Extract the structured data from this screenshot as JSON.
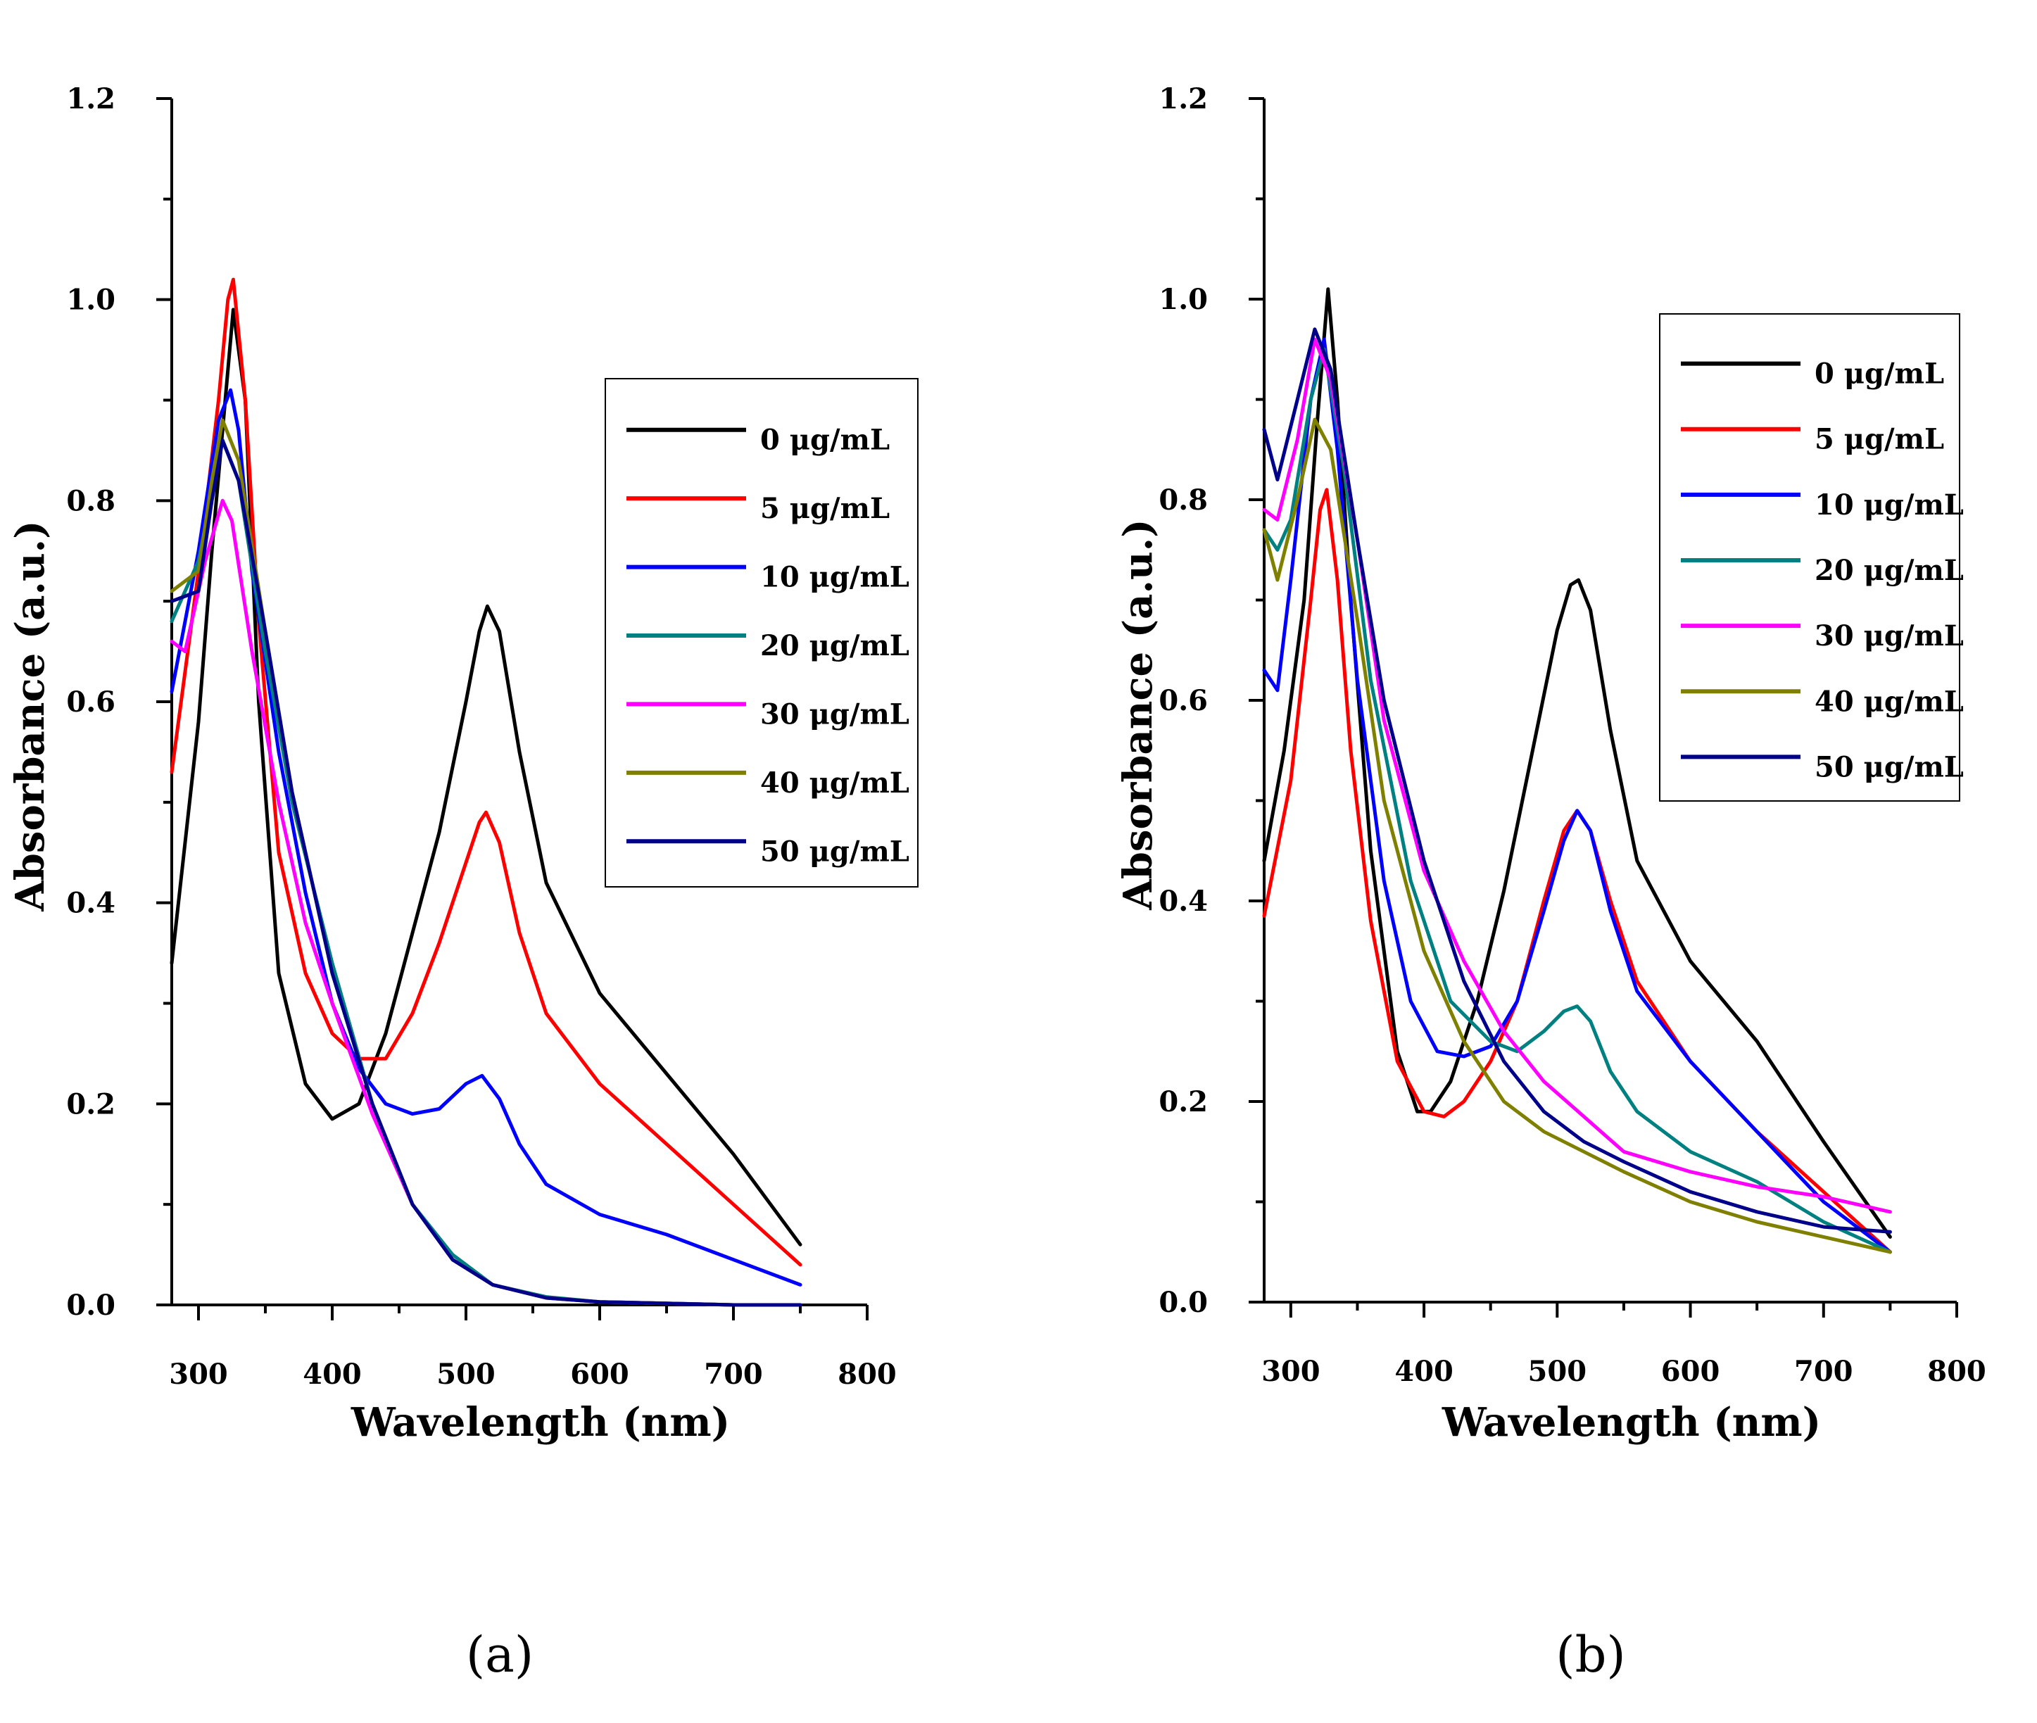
{
  "chart_data": [
    {
      "type": "line",
      "panel_label": "(a)",
      "xlabel": "Wavelength (nm)",
      "ylabel": "Absorbance (a.u.)",
      "xlim": [
        280,
        800
      ],
      "ylim": [
        0,
        1.2
      ],
      "xticks": [
        300,
        400,
        500,
        600,
        700,
        800
      ],
      "yticks": [
        0.0,
        0.2,
        0.4,
        0.6,
        0.8,
        1.0,
        1.2
      ],
      "xtick_labels": [
        "300",
        "400",
        "500",
        "600",
        "700",
        "800"
      ],
      "ytick_labels": [
        "0.0",
        "0.2",
        "0.4",
        "0.6",
        "0.8",
        "1.0",
        "1.2"
      ],
      "legend_position": "right",
      "series": [
        {
          "name": "0 μg/mL",
          "color": "#000000",
          "x": [
            280,
            300,
            310,
            320,
            326,
            335,
            345,
            360,
            380,
            400,
            420,
            440,
            460,
            480,
            500,
            510,
            516,
            525,
            540,
            560,
            600,
            650,
            700,
            750
          ],
          "y": [
            0.34,
            0.58,
            0.75,
            0.9,
            0.99,
            0.9,
            0.6,
            0.33,
            0.22,
            0.185,
            0.2,
            0.27,
            0.37,
            0.47,
            0.6,
            0.67,
            0.695,
            0.67,
            0.55,
            0.42,
            0.31,
            0.23,
            0.15,
            0.06
          ]
        },
        {
          "name": "5 μg/mL",
          "color": "#ff0000",
          "x": [
            280,
            300,
            315,
            322,
            326,
            335,
            345,
            360,
            380,
            400,
            420,
            440,
            460,
            480,
            500,
            510,
            515,
            525,
            540,
            560,
            600,
            650,
            700,
            750
          ],
          "y": [
            0.53,
            0.73,
            0.9,
            1.0,
            1.02,
            0.9,
            0.68,
            0.45,
            0.33,
            0.27,
            0.245,
            0.245,
            0.29,
            0.36,
            0.44,
            0.48,
            0.49,
            0.46,
            0.37,
            0.29,
            0.22,
            0.16,
            0.1,
            0.04
          ]
        },
        {
          "name": "10 μg/mL",
          "color": "#0000ff",
          "x": [
            280,
            300,
            315,
            324,
            330,
            340,
            360,
            380,
            400,
            420,
            440,
            460,
            480,
            500,
            512,
            525,
            540,
            560,
            600,
            650,
            700,
            750
          ],
          "y": [
            0.61,
            0.75,
            0.88,
            0.91,
            0.87,
            0.73,
            0.55,
            0.41,
            0.3,
            0.235,
            0.2,
            0.19,
            0.195,
            0.22,
            0.228,
            0.205,
            0.16,
            0.12,
            0.09,
            0.07,
            0.045,
            0.02
          ]
        },
        {
          "name": "20 μg/mL",
          "color": "#008080",
          "x": [
            280,
            300,
            318,
            330,
            350,
            370,
            400,
            430,
            460,
            490,
            520,
            560,
            600,
            700,
            750
          ],
          "y": [
            0.68,
            0.74,
            0.86,
            0.82,
            0.65,
            0.5,
            0.34,
            0.2,
            0.1,
            0.05,
            0.02,
            0.008,
            0.003,
            0.0,
            0.0
          ]
        },
        {
          "name": "30 μg/mL",
          "color": "#ff00ff",
          "x": [
            280,
            290,
            305,
            318,
            325,
            340,
            360,
            380,
            400,
            430,
            460,
            490,
            520,
            560,
            600,
            700,
            750
          ],
          "y": [
            0.66,
            0.65,
            0.74,
            0.8,
            0.78,
            0.65,
            0.5,
            0.38,
            0.3,
            0.19,
            0.1,
            0.045,
            0.02,
            0.007,
            0.003,
            0.0,
            0.0
          ]
        },
        {
          "name": "40 μg/mL",
          "color": "#808000",
          "x": [
            280,
            300,
            310,
            318,
            330,
            350,
            370,
            400,
            430,
            460,
            490,
            520,
            560,
            600,
            700,
            750
          ],
          "y": [
            0.71,
            0.73,
            0.82,
            0.88,
            0.84,
            0.67,
            0.51,
            0.33,
            0.2,
            0.1,
            0.045,
            0.02,
            0.007,
            0.003,
            0.0,
            0.0
          ]
        },
        {
          "name": "50 μg/mL",
          "color": "#00008b",
          "x": [
            280,
            300,
            310,
            318,
            330,
            350,
            370,
            400,
            430,
            460,
            490,
            520,
            560,
            600,
            700,
            750
          ],
          "y": [
            0.7,
            0.71,
            0.8,
            0.86,
            0.82,
            0.67,
            0.51,
            0.33,
            0.2,
            0.1,
            0.045,
            0.02,
            0.007,
            0.003,
            0.0,
            0.0
          ]
        }
      ]
    },
    {
      "type": "line",
      "panel_label": "(b)",
      "xlabel": "Wavelength (nm)",
      "ylabel": "Absorbance (a.u.)",
      "xlim": [
        280,
        800
      ],
      "ylim": [
        0,
        1.2
      ],
      "xticks": [
        300,
        400,
        500,
        600,
        700,
        800
      ],
      "yticks": [
        0.0,
        0.2,
        0.4,
        0.6,
        0.8,
        1.0,
        1.2
      ],
      "xtick_labels": [
        "300",
        "400",
        "500",
        "600",
        "700",
        "800"
      ],
      "ytick_labels": [
        "0.0",
        "0.2",
        "0.4",
        "0.6",
        "0.8",
        "1.0",
        "1.2"
      ],
      "legend_position": "top-right",
      "series": [
        {
          "name": "0 μg/mL",
          "color": "#000000",
          "x": [
            280,
            295,
            310,
            320,
            328,
            335,
            345,
            360,
            380,
            395,
            405,
            420,
            440,
            460,
            480,
            500,
            510,
            516,
            525,
            540,
            560,
            600,
            650,
            700,
            750
          ],
          "y": [
            0.44,
            0.55,
            0.7,
            0.88,
            1.01,
            0.9,
            0.7,
            0.45,
            0.25,
            0.19,
            0.19,
            0.22,
            0.3,
            0.41,
            0.54,
            0.67,
            0.715,
            0.72,
            0.69,
            0.57,
            0.44,
            0.34,
            0.26,
            0.16,
            0.065
          ]
        },
        {
          "name": "5 μg/mL",
          "color": "#ff0000",
          "x": [
            280,
            300,
            315,
            322,
            327,
            335,
            345,
            360,
            380,
            400,
            415,
            430,
            450,
            470,
            490,
            505,
            515,
            525,
            540,
            560,
            600,
            650,
            700,
            750
          ],
          "y": [
            0.385,
            0.52,
            0.7,
            0.79,
            0.81,
            0.72,
            0.55,
            0.38,
            0.24,
            0.19,
            0.185,
            0.2,
            0.24,
            0.3,
            0.4,
            0.47,
            0.49,
            0.47,
            0.4,
            0.32,
            0.24,
            0.17,
            0.11,
            0.05
          ]
        },
        {
          "name": "10 μg/mL",
          "color": "#0000ff",
          "x": [
            280,
            290,
            300,
            315,
            325,
            335,
            350,
            370,
            390,
            410,
            430,
            450,
            470,
            490,
            505,
            515,
            525,
            540,
            560,
            600,
            650,
            700,
            750
          ],
          "y": [
            0.63,
            0.61,
            0.72,
            0.9,
            0.96,
            0.85,
            0.62,
            0.42,
            0.3,
            0.25,
            0.245,
            0.255,
            0.3,
            0.39,
            0.46,
            0.49,
            0.47,
            0.39,
            0.31,
            0.24,
            0.17,
            0.1,
            0.05
          ]
        },
        {
          "name": "20 μg/mL",
          "color": "#008080",
          "x": [
            280,
            290,
            300,
            315,
            325,
            340,
            360,
            390,
            420,
            450,
            470,
            490,
            505,
            515,
            525,
            540,
            560,
            600,
            650,
            700,
            750
          ],
          "y": [
            0.77,
            0.75,
            0.78,
            0.9,
            0.95,
            0.83,
            0.62,
            0.42,
            0.3,
            0.26,
            0.25,
            0.27,
            0.29,
            0.295,
            0.28,
            0.23,
            0.19,
            0.15,
            0.12,
            0.08,
            0.05
          ]
        },
        {
          "name": "30 μg/mL",
          "color": "#ff00ff",
          "x": [
            280,
            290,
            305,
            318,
            330,
            350,
            370,
            400,
            430,
            460,
            490,
            520,
            550,
            600,
            650,
            700,
            750
          ],
          "y": [
            0.79,
            0.78,
            0.86,
            0.96,
            0.92,
            0.76,
            0.58,
            0.43,
            0.34,
            0.27,
            0.22,
            0.185,
            0.15,
            0.13,
            0.115,
            0.105,
            0.09
          ]
        },
        {
          "name": "40 μg/mL",
          "color": "#808000",
          "x": [
            280,
            290,
            305,
            318,
            330,
            350,
            370,
            400,
            430,
            460,
            490,
            520,
            550,
            600,
            650,
            700,
            750
          ],
          "y": [
            0.77,
            0.72,
            0.8,
            0.88,
            0.85,
            0.68,
            0.5,
            0.35,
            0.26,
            0.2,
            0.17,
            0.15,
            0.13,
            0.1,
            0.08,
            0.065,
            0.05
          ]
        },
        {
          "name": "50 μg/mL",
          "color": "#00008b",
          "x": [
            280,
            290,
            305,
            318,
            330,
            350,
            370,
            400,
            430,
            460,
            490,
            520,
            550,
            600,
            650,
            700,
            750
          ],
          "y": [
            0.87,
            0.82,
            0.9,
            0.97,
            0.93,
            0.76,
            0.6,
            0.44,
            0.32,
            0.24,
            0.19,
            0.16,
            0.14,
            0.11,
            0.09,
            0.075,
            0.07
          ]
        }
      ]
    }
  ]
}
